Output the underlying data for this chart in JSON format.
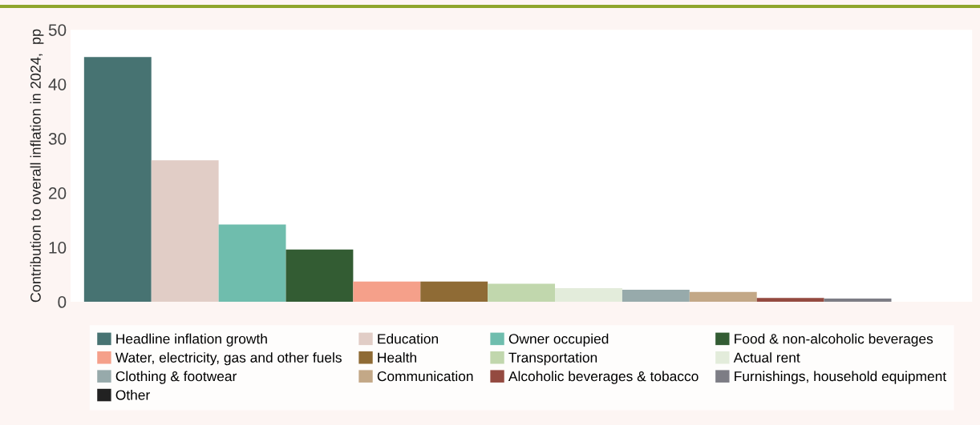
{
  "chart_data": {
    "type": "bar",
    "ylabel": "Contribution to overall inflation in 2024,  pp",
    "categories": [
      null
    ],
    "series": [
      {
        "name": "Headline inflation growth",
        "color": "#477372",
        "values": [
          45
        ]
      },
      {
        "name": "Education",
        "color": "#e1cdc6",
        "values": [
          26
        ]
      },
      {
        "name": "Owner occupied",
        "color": "#6fbdad",
        "values": [
          14.2
        ]
      },
      {
        "name": "Food & non-alcoholic beverages",
        "color": "#335c33",
        "values": [
          9.6
        ]
      },
      {
        "name": "Water, electricity, gas and other fuels",
        "color": "#f5a08a",
        "values": [
          3.7
        ]
      },
      {
        "name": "Health",
        "color": "#8f6b35",
        "values": [
          3.7
        ]
      },
      {
        "name": "Transportation",
        "color": "#c1d7ad",
        "values": [
          3.3
        ]
      },
      {
        "name": "Actual rent",
        "color": "#e3ecdb",
        "values": [
          2.5
        ]
      },
      {
        "name": "Clothing & footwear",
        "color": "#97aaab",
        "values": [
          2.2
        ]
      },
      {
        "name": "Communication",
        "color": "#c3a887",
        "values": [
          1.8
        ]
      },
      {
        "name": "Alcoholic beverages & tobacco",
        "color": "#944a40",
        "values": [
          0.7
        ]
      },
      {
        "name": "Furnishings, household equipment",
        "color": "#7d7d85",
        "values": [
          0.6
        ]
      },
      {
        "name": "Other",
        "color": "#222222",
        "values": [
          0
        ]
      }
    ],
    "ylim": [
      0,
      50
    ],
    "yticks": [
      0,
      10,
      20,
      30,
      40,
      50
    ],
    "grid": false,
    "legend": "bottom"
  }
}
